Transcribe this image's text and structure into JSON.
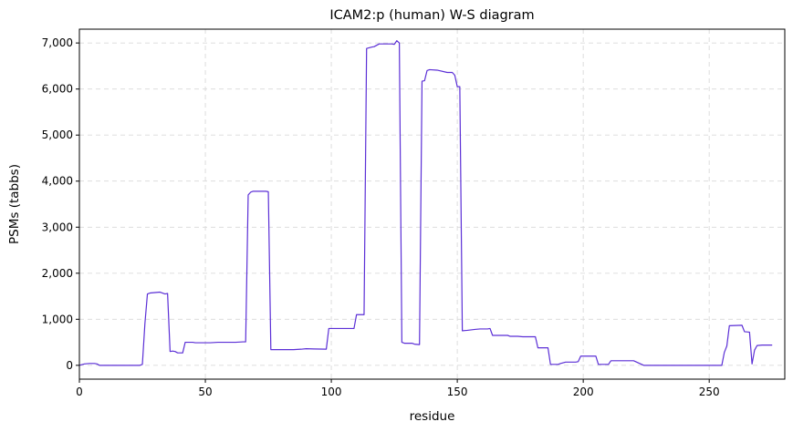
{
  "chart_data": {
    "type": "line",
    "title": "ICAM2:p (human) W-S diagram",
    "xlabel": "residue",
    "ylabel": "PSMs (tabbs)",
    "xlim": [
      0,
      280
    ],
    "ylim": [
      -300,
      7300
    ],
    "xticks": [
      0,
      50,
      100,
      150,
      200,
      250
    ],
    "xtick_labels": [
      "0",
      "50",
      "100",
      "150",
      "200",
      "250"
    ],
    "yticks": [
      0,
      1000,
      2000,
      3000,
      4000,
      5000,
      6000,
      7000
    ],
    "ytick_labels": [
      "0",
      "1,000",
      "2,000",
      "3,000",
      "4,000",
      "5,000",
      "6,000",
      "7,000"
    ],
    "grid": true,
    "line_color": "#5b2fd6",
    "series": [
      {
        "name": "",
        "points": [
          [
            0,
            0
          ],
          [
            2,
            30
          ],
          [
            4,
            40
          ],
          [
            6,
            40
          ],
          [
            7,
            30
          ],
          [
            8,
            0
          ],
          [
            24,
            0
          ],
          [
            25,
            20
          ],
          [
            26,
            900
          ],
          [
            27,
            1550
          ],
          [
            28,
            1570
          ],
          [
            30,
            1580
          ],
          [
            32,
            1590
          ],
          [
            34,
            1550
          ],
          [
            35,
            1560
          ],
          [
            36,
            300
          ],
          [
            37,
            310
          ],
          [
            38,
            300
          ],
          [
            39,
            270
          ],
          [
            41,
            270
          ],
          [
            42,
            500
          ],
          [
            45,
            500
          ],
          [
            46,
            490
          ],
          [
            52,
            490
          ],
          [
            55,
            500
          ],
          [
            62,
            500
          ],
          [
            65,
            510
          ],
          [
            66,
            510
          ],
          [
            67,
            3700
          ],
          [
            68,
            3760
          ],
          [
            69,
            3780
          ],
          [
            71,
            3780
          ],
          [
            74,
            3780
          ],
          [
            75,
            3770
          ],
          [
            76,
            340
          ],
          [
            85,
            340
          ],
          [
            88,
            350
          ],
          [
            90,
            360
          ],
          [
            93,
            355
          ],
          [
            98,
            350
          ],
          [
            99,
            800
          ],
          [
            109,
            800
          ],
          [
            110,
            1100
          ],
          [
            113,
            1100
          ],
          [
            114,
            6880
          ],
          [
            116,
            6910
          ],
          [
            117,
            6920
          ],
          [
            118,
            6950
          ],
          [
            119,
            6980
          ],
          [
            124,
            6980
          ],
          [
            125,
            6970
          ],
          [
            126,
            7050
          ],
          [
            127,
            7000
          ],
          [
            128,
            500
          ],
          [
            129,
            480
          ],
          [
            132,
            480
          ],
          [
            133,
            460
          ],
          [
            135,
            450
          ],
          [
            136,
            6170
          ],
          [
            137,
            6180
          ],
          [
            138,
            6400
          ],
          [
            139,
            6420
          ],
          [
            142,
            6410
          ],
          [
            146,
            6360
          ],
          [
            148,
            6360
          ],
          [
            149,
            6300
          ],
          [
            150,
            6050
          ],
          [
            151,
            6050
          ],
          [
            152,
            750
          ],
          [
            154,
            760
          ],
          [
            157,
            780
          ],
          [
            159,
            790
          ],
          [
            162,
            790
          ],
          [
            163,
            800
          ],
          [
            164,
            650
          ],
          [
            170,
            650
          ],
          [
            171,
            630
          ],
          [
            174,
            630
          ],
          [
            176,
            620
          ],
          [
            181,
            620
          ],
          [
            182,
            380
          ],
          [
            186,
            380
          ],
          [
            187,
            20
          ],
          [
            190,
            20
          ],
          [
            191,
            40
          ],
          [
            193,
            70
          ],
          [
            197,
            70
          ],
          [
            198,
            80
          ],
          [
            199,
            200
          ],
          [
            205,
            200
          ],
          [
            206,
            20
          ],
          [
            210,
            20
          ],
          [
            211,
            100
          ],
          [
            220,
            100
          ],
          [
            224,
            0
          ],
          [
            255,
            0
          ],
          [
            256,
            280
          ],
          [
            257,
            420
          ],
          [
            258,
            860
          ],
          [
            263,
            870
          ],
          [
            264,
            730
          ],
          [
            266,
            720
          ],
          [
            267,
            30
          ],
          [
            268,
            330
          ],
          [
            269,
            430
          ],
          [
            271,
            440
          ],
          [
            275,
            440
          ]
        ]
      }
    ]
  }
}
